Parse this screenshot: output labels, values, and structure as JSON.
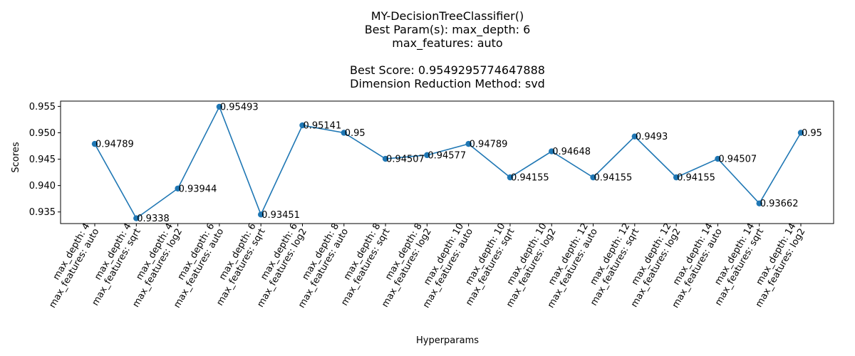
{
  "chart_data": {
    "type": "line",
    "title_lines": [
      "MY-DecisionTreeClassifier()",
      "Best Param(s): max_depth: 6",
      "max_features: auto",
      "",
      "Best Score: 0.9549295774647888",
      "Dimension Reduction Method: svd"
    ],
    "xlabel": "Hyperparams",
    "ylabel": "Scores",
    "ylim": [
      0.9328,
      0.956
    ],
    "yticks": [
      0.935,
      0.94,
      0.945,
      0.95,
      0.955
    ],
    "ytick_labels": [
      "0.935",
      "0.940",
      "0.945",
      "0.950",
      "0.955"
    ],
    "grid": false,
    "color": "#1f77b4",
    "categories": [
      [
        "max_depth: 4",
        "max_features: auto"
      ],
      [
        "max_depth: 4",
        "max_features: sqrt"
      ],
      [
        "max_depth: 4",
        "max_features: log2"
      ],
      [
        "max_depth: 6",
        "max_features: auto"
      ],
      [
        "max_depth: 6",
        "max_features: sqrt"
      ],
      [
        "max_depth: 6",
        "max_features: log2"
      ],
      [
        "max_depth: 8",
        "max_features: auto"
      ],
      [
        "max_depth: 8",
        "max_features: sqrt"
      ],
      [
        "max_depth: 8",
        "max_features: log2"
      ],
      [
        "max_depth: 10",
        "max_features: auto"
      ],
      [
        "max_depth: 10",
        "max_features: sqrt"
      ],
      [
        "max_depth: 10",
        "max_features: log2"
      ],
      [
        "max_depth: 12",
        "max_features: auto"
      ],
      [
        "max_depth: 12",
        "max_features: sqrt"
      ],
      [
        "max_depth: 12",
        "max_features: log2"
      ],
      [
        "max_depth: 14",
        "max_features: auto"
      ],
      [
        "max_depth: 14",
        "max_features: sqrt"
      ],
      [
        "max_depth: 14",
        "max_features: log2"
      ]
    ],
    "values": [
      0.94789,
      0.9338,
      0.93944,
      0.95493,
      0.93451,
      0.95141,
      0.95,
      0.94507,
      0.94577,
      0.94789,
      0.94155,
      0.94648,
      0.94155,
      0.9493,
      0.94155,
      0.94507,
      0.93662,
      0.95
    ],
    "value_labels": [
      "0.94789",
      "0.9338",
      "0.93944",
      "0.95493",
      "0.93451",
      "0.95141",
      "0.95",
      "0.94507",
      "0.94577",
      "0.94789",
      "0.94155",
      "0.94648",
      "0.94155",
      "0.9493",
      "0.94155",
      "0.94507",
      "0.93662",
      "0.95"
    ]
  }
}
